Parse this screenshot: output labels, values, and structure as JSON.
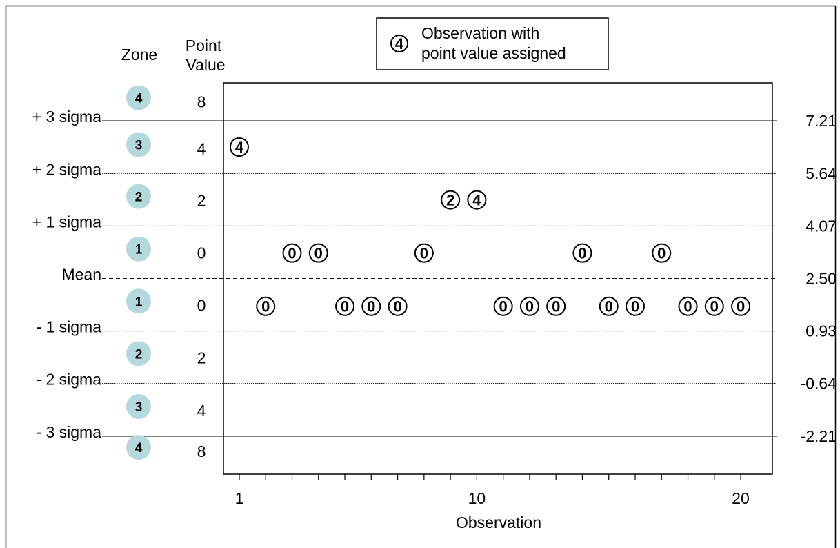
{
  "chart_data": {
    "type": "scatter",
    "title": "",
    "xlabel": "Observation",
    "ylabel": "",
    "xlim": [
      0.4,
      21.2
    ],
    "ylim": [
      -3.35,
      8.35
    ],
    "x_ticks": [
      1,
      10,
      20
    ],
    "x_minor_ticks": [
      1,
      2,
      3,
      4,
      5,
      6,
      7,
      8,
      9,
      10,
      11,
      12,
      13,
      14,
      15,
      16,
      17,
      18,
      19,
      20
    ],
    "column_headers": {
      "zone": "Zone",
      "point_value_line1": "Point",
      "point_value_line2": "Value"
    },
    "legend": {
      "symbol": "4",
      "line1": "Observation with",
      "line2": "point value assigned",
      "position": "top-center"
    },
    "control_lines": [
      {
        "name": "+ 3 sigma",
        "value": 7.21,
        "value_label": "7.21",
        "style": "solid"
      },
      {
        "name": "+ 2 sigma",
        "value": 5.64,
        "value_label": "5.64",
        "style": "dotted"
      },
      {
        "name": "+ 1 sigma",
        "value": 4.07,
        "value_label": "4.07",
        "style": "dotted"
      },
      {
        "name": "Mean",
        "value": 2.5,
        "value_label": "2.50",
        "style": "dashed"
      },
      {
        "name": "- 1 sigma",
        "value": 0.93,
        "value_label": "0.93",
        "style": "dotted"
      },
      {
        "name": "- 2 sigma",
        "value": -0.64,
        "value_label": "-0.64",
        "style": "dotted"
      },
      {
        "name": "- 3 sigma",
        "value": -2.21,
        "value_label": "-2.21",
        "style": "solid"
      }
    ],
    "zones": [
      {
        "zone": "4",
        "point_value": "8",
        "y_center": 7.8
      },
      {
        "zone": "3",
        "point_value": "4",
        "y_center": 6.4
      },
      {
        "zone": "2",
        "point_value": "2",
        "y_center": 4.85
      },
      {
        "zone": "1",
        "point_value": "0",
        "y_center": 3.28
      },
      {
        "zone": "1",
        "point_value": "0",
        "y_center": 1.72
      },
      {
        "zone": "2",
        "point_value": "2",
        "y_center": 0.15
      },
      {
        "zone": "3",
        "point_value": "4",
        "y_center": -1.43
      },
      {
        "zone": "4",
        "point_value": "8",
        "y_center": -2.65
      }
    ],
    "observations": [
      {
        "x": 1,
        "y": 6.43,
        "point_value": "4"
      },
      {
        "x": 2,
        "y": 1.67,
        "point_value": "0"
      },
      {
        "x": 3,
        "y": 3.26,
        "point_value": "0"
      },
      {
        "x": 4,
        "y": 3.26,
        "point_value": "0"
      },
      {
        "x": 5,
        "y": 1.67,
        "point_value": "0"
      },
      {
        "x": 6,
        "y": 1.67,
        "point_value": "0"
      },
      {
        "x": 7,
        "y": 1.67,
        "point_value": "0"
      },
      {
        "x": 8,
        "y": 3.26,
        "point_value": "0"
      },
      {
        "x": 9,
        "y": 4.85,
        "point_value": "2"
      },
      {
        "x": 10,
        "y": 4.85,
        "point_value": "4"
      },
      {
        "x": 11,
        "y": 1.67,
        "point_value": "0"
      },
      {
        "x": 12,
        "y": 1.67,
        "point_value": "0"
      },
      {
        "x": 13,
        "y": 1.67,
        "point_value": "0"
      },
      {
        "x": 14,
        "y": 3.26,
        "point_value": "0"
      },
      {
        "x": 15,
        "y": 1.67,
        "point_value": "0"
      },
      {
        "x": 16,
        "y": 1.67,
        "point_value": "0"
      },
      {
        "x": 17,
        "y": 3.26,
        "point_value": "0"
      },
      {
        "x": 18,
        "y": 1.67,
        "point_value": "0"
      },
      {
        "x": 19,
        "y": 1.67,
        "point_value": "0"
      },
      {
        "x": 20,
        "y": 1.67,
        "point_value": "0"
      }
    ],
    "colors": {
      "zone_badge": "#b3d9dc",
      "line": "#000000",
      "background": "#ffffff"
    },
    "grid": false
  }
}
